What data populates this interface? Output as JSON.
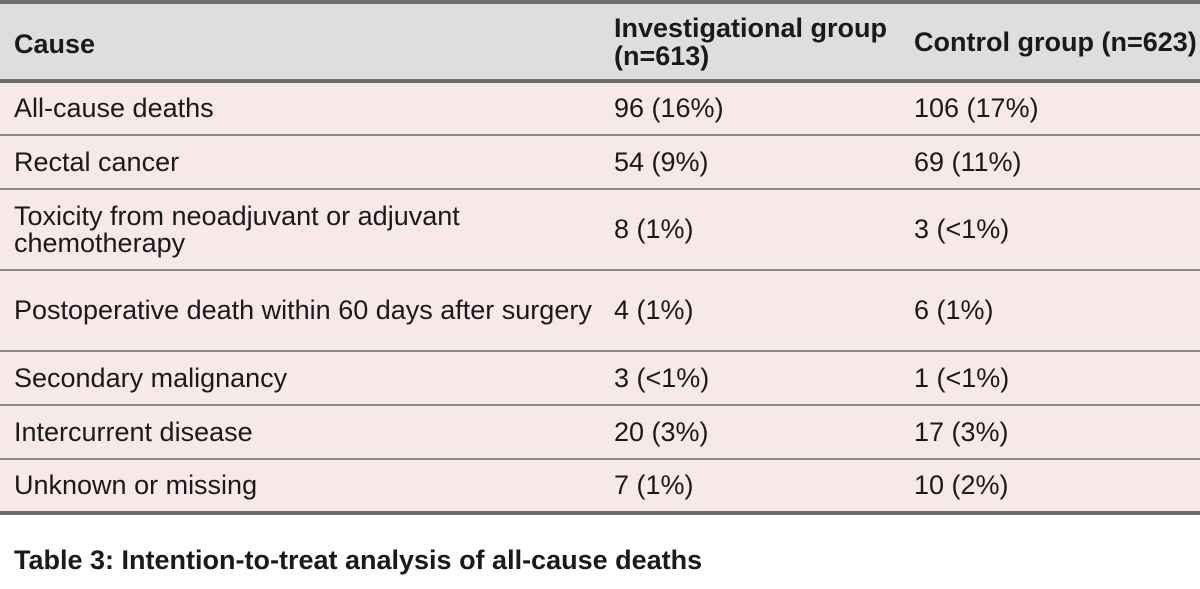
{
  "table": {
    "headers": {
      "cause": "Cause",
      "investigational": "Investigational group (n=613)",
      "control": "Control group (n=623)"
    },
    "rows": [
      {
        "cause": "All-cause deaths",
        "investigational": "96 (16%)",
        "control": "106 (17%)"
      },
      {
        "cause": "Rectal cancer",
        "investigational": "54 (9%)",
        "control": "69 (11%)"
      },
      {
        "cause": "Toxicity from neoadjuvant or adjuvant chemotherapy",
        "investigational": "8 (1%)",
        "control": "3 (<1%)"
      },
      {
        "cause": "Postoperative death within 60 days after surgery",
        "investigational": "4 (1%)",
        "control": "6 (1%)"
      },
      {
        "cause": "Secondary malignancy",
        "investigational": "3 (<1%)",
        "control": "1 (<1%)"
      },
      {
        "cause": "Intercurrent disease",
        "investigational": "20 (3%)",
        "control": "17 (3%)"
      },
      {
        "cause": "Unknown or missing",
        "investigational": "7 (1%)",
        "control": "10 (2%)"
      }
    ]
  },
  "caption": "Table 3: Intention-to-treat analysis of all-cause deaths",
  "colors": {
    "header_background": "#dedede",
    "row_background": "#f7e9e9",
    "rule": "#6d6d6d"
  }
}
